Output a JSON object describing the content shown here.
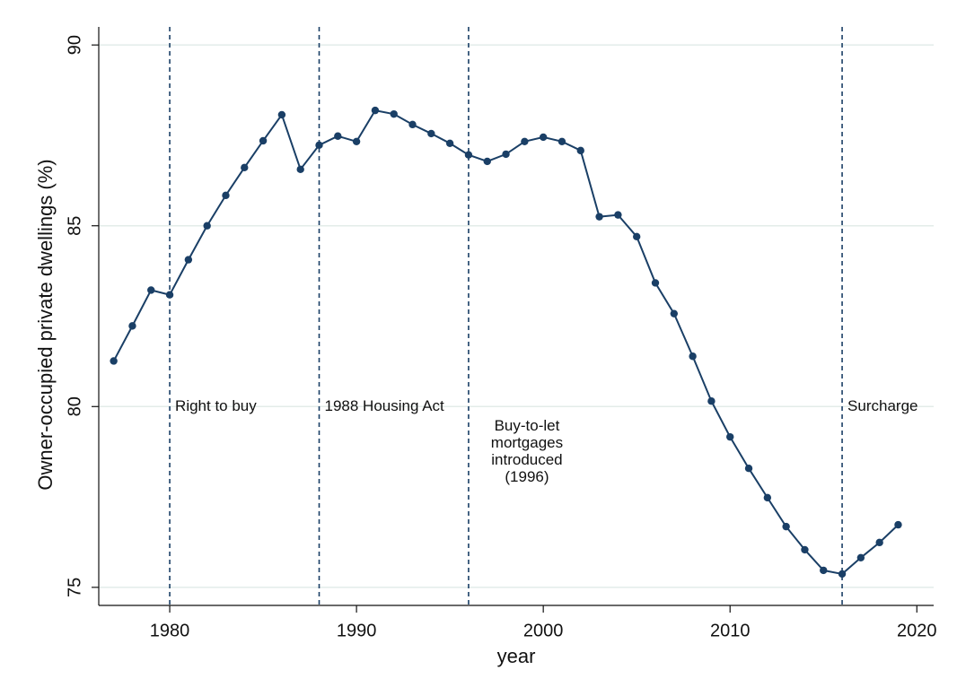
{
  "chart_data": {
    "type": "line",
    "xlabel": "year",
    "ylabel": "Owner-occupied private dwellings (%)",
    "x": [
      1977,
      1978,
      1979,
      1980,
      1981,
      1982,
      1983,
      1984,
      1985,
      1986,
      1987,
      1988,
      1989,
      1990,
      1991,
      1992,
      1993,
      1994,
      1995,
      1996,
      1997,
      1998,
      1999,
      2000,
      2001,
      2002,
      2003,
      2004,
      2005,
      2006,
      2007,
      2008,
      2009,
      2010,
      2011,
      2012,
      2013,
      2014,
      2015,
      2016,
      2017,
      2018,
      2019
    ],
    "series": [
      {
        "color": "#1a3f66",
        "values": [
          81.26,
          82.23,
          83.22,
          83.09,
          84.06,
          85.0,
          85.84,
          86.61,
          87.35,
          88.07,
          86.56,
          87.23,
          87.48,
          87.33,
          88.19,
          88.09,
          87.8,
          87.55,
          87.28,
          86.96,
          86.78,
          86.98,
          87.33,
          87.45,
          87.33,
          87.08,
          85.25,
          85.3,
          84.7,
          83.42,
          82.57,
          81.39,
          80.15,
          79.16,
          78.29,
          77.48,
          76.68,
          76.04,
          75.47,
          75.37,
          75.82,
          76.24,
          76.73
        ]
      }
    ],
    "xlim": [
      1976.2,
      2020.9
    ],
    "ylim": [
      74.5,
      90.5
    ],
    "xticks": [
      1980,
      1990,
      2000,
      2010,
      2020
    ],
    "yticks": [
      75,
      80,
      85,
      90
    ],
    "grid": true,
    "annotations": [
      {
        "x": 1980,
        "lines": [
          "Right to buy"
        ]
      },
      {
        "x": 1988,
        "lines": [
          "1988 Housing Act"
        ]
      },
      {
        "x": 1996,
        "lines": [
          "Buy-to-let",
          "mortgages",
          "introduced",
          "(1996)"
        ]
      },
      {
        "x": 2016,
        "lines": [
          "Surcharge"
        ]
      }
    ]
  }
}
